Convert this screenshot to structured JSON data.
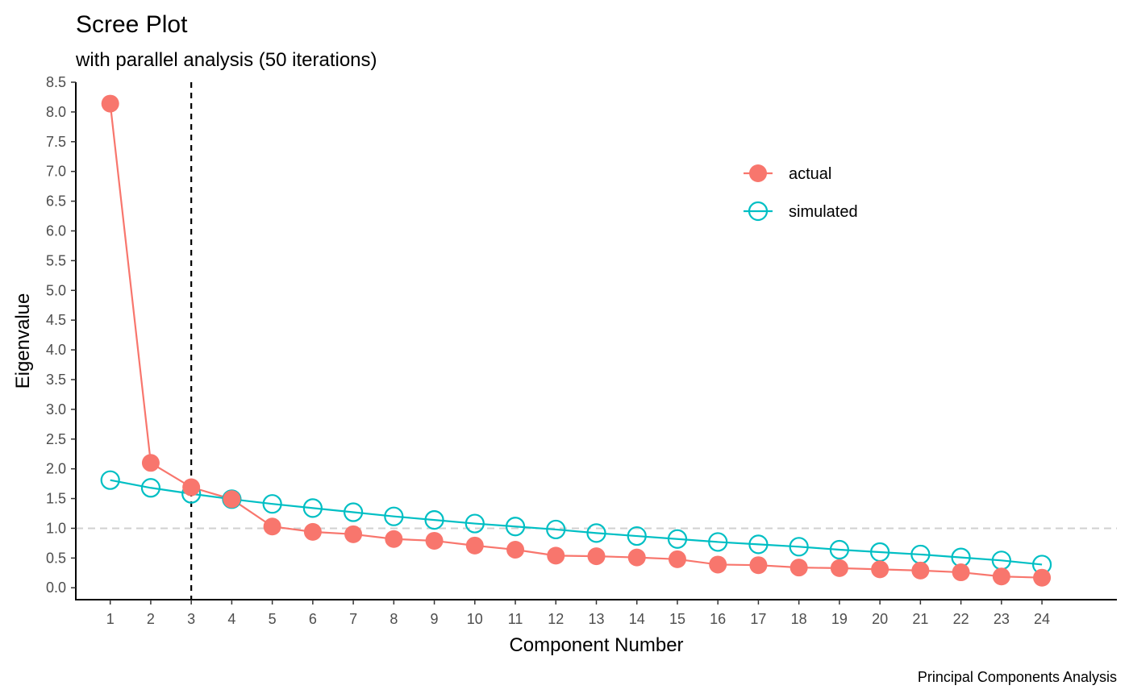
{
  "chart_data": {
    "type": "line",
    "title": "Scree Plot",
    "subtitle": "with parallel analysis (50 iterations)",
    "xlabel": "Component Number",
    "ylabel": "Eigenvalue",
    "caption": "Principal Components Analysis",
    "x": [
      1,
      2,
      3,
      4,
      5,
      6,
      7,
      8,
      9,
      10,
      11,
      12,
      13,
      14,
      15,
      16,
      17,
      18,
      19,
      20,
      21,
      22,
      23,
      24
    ],
    "xlim": [
      0.15,
      25.85
    ],
    "ylim": [
      -0.2,
      8.5
    ],
    "y_ticks": [
      0.0,
      0.5,
      1.0,
      1.5,
      2.0,
      2.5,
      3.0,
      3.5,
      4.0,
      4.5,
      5.0,
      5.5,
      6.0,
      6.5,
      7.0,
      7.5,
      8.0,
      8.5
    ],
    "y_tick_labels": [
      "0.0",
      "0.5",
      "1.0",
      "1.5",
      "2.0",
      "2.5",
      "3.0",
      "3.5",
      "4.0",
      "4.5",
      "5.0",
      "5.5",
      "6.0",
      "6.5",
      "7.0",
      "7.5",
      "8.0",
      "8.5"
    ],
    "x_tick_labels": [
      "1",
      "2",
      "3",
      "4",
      "5",
      "6",
      "7",
      "8",
      "9",
      "10",
      "11",
      "12",
      "13",
      "14",
      "15",
      "16",
      "17",
      "18",
      "19",
      "20",
      "21",
      "22",
      "23",
      "24"
    ],
    "series": [
      {
        "name": "actual",
        "color": "#F8766D",
        "marker": "filled-circle",
        "values": [
          8.14,
          2.1,
          1.69,
          1.49,
          1.03,
          0.94,
          0.9,
          0.82,
          0.79,
          0.71,
          0.64,
          0.54,
          0.53,
          0.51,
          0.48,
          0.39,
          0.38,
          0.34,
          0.33,
          0.31,
          0.29,
          0.26,
          0.19,
          0.17
        ]
      },
      {
        "name": "simulated",
        "color": "#00BFC4",
        "marker": "open-circle",
        "values": [
          1.81,
          1.68,
          1.58,
          1.49,
          1.41,
          1.34,
          1.27,
          1.2,
          1.14,
          1.08,
          1.03,
          0.98,
          0.92,
          0.87,
          0.82,
          0.77,
          0.73,
          0.69,
          0.64,
          0.6,
          0.56,
          0.51,
          0.46,
          0.39
        ]
      }
    ],
    "reference_lines": {
      "horizontal": {
        "y": 1.0,
        "style": "dashed",
        "color": "#d0d0d0"
      },
      "vertical": {
        "x": 3,
        "style": "dashed",
        "color": "#000000"
      }
    },
    "legend": {
      "placement": "top-right",
      "entries": [
        "actual",
        "simulated"
      ]
    },
    "grid": false
  }
}
